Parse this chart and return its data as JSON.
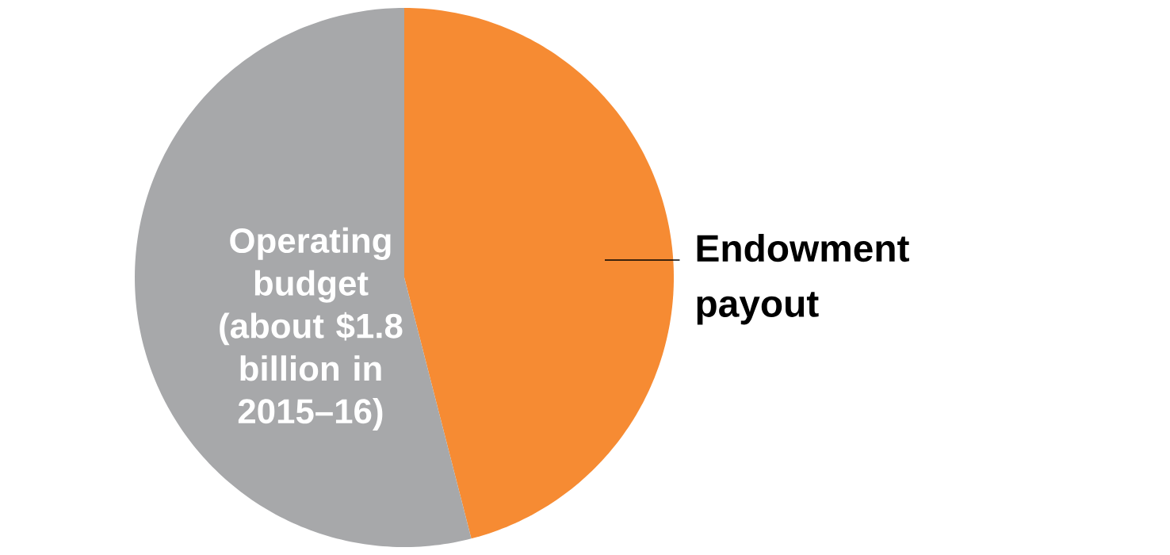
{
  "chart_data": {
    "type": "pie",
    "categories": [
      "Endowment payout",
      "Operating budget (about $1.8 billion in 2015–16)"
    ],
    "values": [
      46,
      54
    ],
    "colors": [
      "#f68b33",
      "#a7a8aa"
    ]
  }
}
